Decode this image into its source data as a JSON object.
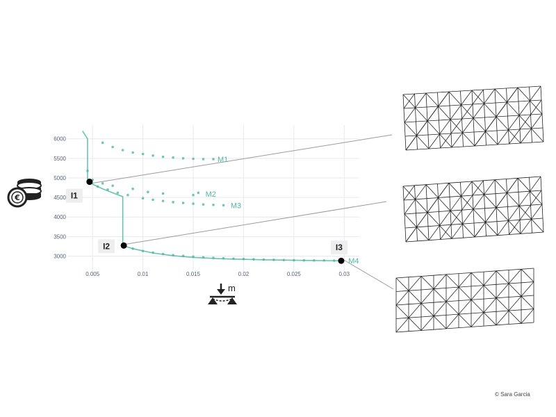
{
  "credit": "© Sara Garcia",
  "icons": {
    "y_axis": "euro-coins-icon",
    "x_axis": "deflection-load-icon"
  },
  "x_axis_unit": "m",
  "colors": {
    "series": "#4fb8a0",
    "grid": "#e6e9ef",
    "points": "#000000",
    "connectors": "#9a9a9a",
    "callout_bg": "#eeeeee"
  },
  "chart_data": {
    "type": "scatter",
    "title": "",
    "xlabel": "",
    "ylabel": "",
    "xlim": [
      0.0025,
      0.0315
    ],
    "ylim": [
      2600,
      6350
    ],
    "x_ticks": [
      0.005,
      0.01,
      0.015,
      0.02,
      0.025,
      0.03
    ],
    "x_tick_labels": [
      "0.005",
      "0.01",
      "0.015",
      "0.02",
      "0.025",
      "0.03"
    ],
    "y_ticks": [
      3000,
      3500,
      4000,
      4500,
      5000,
      5500,
      6000
    ],
    "y_tick_labels": [
      "3000",
      "3500",
      "4000",
      "4500",
      "5000",
      "5500",
      "6000"
    ],
    "grid": true,
    "series": [
      {
        "name": "M1",
        "x": [
          0.0045,
          0.006,
          0.007,
          0.008,
          0.009,
          0.01,
          0.011,
          0.012,
          0.013,
          0.014,
          0.015,
          0.016,
          0.017
        ],
        "y": [
          5180,
          5900,
          5790,
          5710,
          5650,
          5610,
          5570,
          5540,
          5520,
          5500,
          5490,
          5480,
          5480
        ]
      },
      {
        "name": "M2",
        "x": [
          0.005,
          0.006,
          0.007,
          0.009,
          0.0105,
          0.012,
          0.015,
          0.0155
        ],
        "y": [
          4950,
          4860,
          4800,
          4720,
          4640,
          4600,
          4560,
          4620
        ]
      },
      {
        "name": "M3",
        "x": [
          0.0047,
          0.0055,
          0.0065,
          0.0075,
          0.0085,
          0.01,
          0.011,
          0.012,
          0.013,
          0.014,
          0.015,
          0.016,
          0.017,
          0.018
        ],
        "y": [
          4870,
          4780,
          4700,
          4620,
          4560,
          4480,
          4440,
          4410,
          4380,
          4360,
          4340,
          4320,
          4310,
          4300
        ]
      },
      {
        "name": "M4",
        "x": [
          0.0081,
          0.009,
          0.01,
          0.011,
          0.012,
          0.013,
          0.014,
          0.015,
          0.016,
          0.017,
          0.018,
          0.019,
          0.02,
          0.021,
          0.022,
          0.023,
          0.024,
          0.025,
          0.026,
          0.027,
          0.028,
          0.029,
          0.0297
        ],
        "y": [
          3270,
          3190,
          3130,
          3090,
          3055,
          3025,
          3005,
          2985,
          2970,
          2955,
          2945,
          2935,
          2925,
          2918,
          2910,
          2905,
          2900,
          2895,
          2892,
          2890,
          2888,
          2885,
          2880
        ]
      }
    ],
    "frontier": {
      "x": [
        0.004,
        0.0045,
        0.0045,
        0.006,
        0.007,
        0.008,
        0.008,
        0.009,
        0.011,
        0.013,
        0.015,
        0.018,
        0.022,
        0.026,
        0.0297
      ],
      "y": [
        6200,
        6000,
        4900,
        4720,
        4620,
        4520,
        3270,
        3190,
        3080,
        3010,
        2965,
        2930,
        2905,
        2890,
        2880
      ]
    },
    "highlighted_points": [
      {
        "label": "I1",
        "x": 0.0047,
        "y": 4900
      },
      {
        "label": "I2",
        "x": 0.0081,
        "y": 3270
      },
      {
        "label": "I3",
        "x": 0.0297,
        "y": 2880
      }
    ],
    "series_label_anchor": {
      "M1": 0.017,
      "M2": 0.0158,
      "M3": 0.0183,
      "M4": 0.03
    },
    "series_label_value": {
      "M1": 5480,
      "M2": 4590,
      "M3": 4300,
      "M4": 2880
    }
  }
}
